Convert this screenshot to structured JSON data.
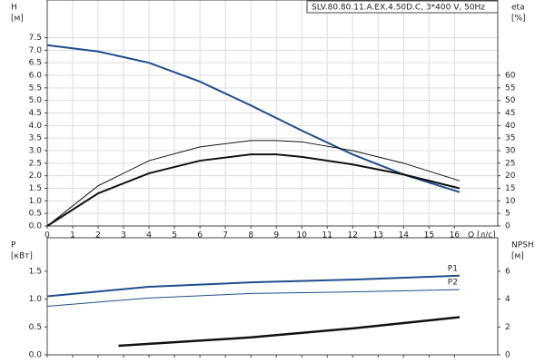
{
  "chart_data": [
    {
      "type": "line",
      "title": "SLV.80.80.11.A.EX.4.50D.C, 3*400 V, 50Hz",
      "ylabel": "H",
      "yunit": "[м]",
      "y2label": "eta",
      "y2unit": "[%]",
      "xlabel": "Q [л/с]",
      "xlim": [
        0,
        17.7
      ],
      "xticks": [
        0,
        1,
        2,
        3,
        4,
        5,
        6,
        7,
        8,
        9,
        10,
        11,
        12,
        13,
        14,
        15,
        16
      ],
      "ylim": [
        0,
        9
      ],
      "yticks": [
        {
          "value": 0,
          "label": "0.0"
        },
        {
          "value": 0.5,
          "label": "0.5"
        },
        {
          "value": 1,
          "label": "1.0"
        },
        {
          "value": 1.5,
          "label": "1.5"
        },
        {
          "value": 2,
          "label": "2.0"
        },
        {
          "value": 2.5,
          "label": "2.5"
        },
        {
          "value": 3,
          "label": "3.0"
        },
        {
          "value": 3.5,
          "label": "3.5"
        },
        {
          "value": 4,
          "label": "4.0"
        },
        {
          "value": 4.5,
          "label": "4.5"
        },
        {
          "value": 5,
          "label": "5.0"
        },
        {
          "value": 5.5,
          "label": "5.5"
        },
        {
          "value": 6,
          "label": "6.0"
        },
        {
          "value": 6.5,
          "label": "6.5"
        },
        {
          "value": 7,
          "label": "7.0"
        },
        {
          "value": 7.5,
          "label": "7.5"
        }
      ],
      "y2lim": [
        0,
        90
      ],
      "y2ticks": [
        0,
        5,
        10,
        15,
        20,
        25,
        30,
        35,
        40,
        45,
        50,
        55,
        60
      ],
      "grid": true,
      "series": [
        {
          "color": "#1f4e8c",
          "width": 2,
          "x": [
            0,
            2,
            4,
            6,
            8,
            10,
            12,
            14,
            16.2
          ],
          "values": [
            7.2,
            6.95,
            6.5,
            5.75,
            4.8,
            3.8,
            2.85,
            2.05,
            1.35
          ]
        },
        {
          "color": "#111111",
          "width": 1,
          "axis": "y2",
          "x": [
            0,
            2,
            4,
            6,
            8,
            9,
            10,
            12,
            14,
            16.2
          ],
          "values": [
            0,
            16,
            26,
            31.5,
            34,
            34,
            33.5,
            30,
            25,
            18
          ]
        },
        {
          "color": "#111111",
          "width": 2,
          "axis": "y2",
          "x": [
            0,
            2,
            4,
            6,
            8,
            9,
            10,
            12,
            14,
            16.2
          ],
          "values": [
            0,
            13,
            21,
            26,
            28.5,
            28.5,
            27.5,
            24.5,
            20.5,
            15
          ]
        }
      ]
    },
    {
      "type": "line",
      "ylabel": "P",
      "yunit": "[кВт]",
      "y2label": "NPSH",
      "y2unit": "[м]",
      "xlim": [
        0,
        17.7
      ],
      "xticks": [
        0,
        1,
        2,
        3,
        4,
        5,
        6,
        7,
        8,
        9,
        10,
        11,
        12,
        13,
        14,
        15,
        16
      ],
      "ylim": [
        0,
        2.1
      ],
      "yticks": [
        {
          "value": 0,
          "label": "0.0"
        },
        {
          "value": 0.5,
          "label": "0.5"
        },
        {
          "value": 1,
          "label": "1.0"
        },
        {
          "value": 1.5,
          "label": "1.5"
        }
      ],
      "y2lim": [
        0,
        8.4
      ],
      "y2ticks": [
        0,
        2,
        4,
        6
      ],
      "grid": false,
      "series": [
        {
          "name": "P1",
          "color": "#1f4e8c",
          "width": 2,
          "x": [
            0,
            4,
            8,
            12,
            16.2
          ],
          "values": [
            1.05,
            1.22,
            1.3,
            1.35,
            1.42
          ]
        },
        {
          "name": "P2",
          "color": "#1f4e8c",
          "width": 1,
          "x": [
            0,
            4,
            8,
            12,
            16.2
          ],
          "values": [
            0.87,
            1.02,
            1.1,
            1.13,
            1.17
          ]
        },
        {
          "color": "#111111",
          "width": 2.5,
          "axis": "y2",
          "x": [
            2.8,
            8,
            12,
            16.2
          ],
          "values": [
            0.65,
            1.25,
            1.9,
            2.7
          ]
        }
      ]
    }
  ]
}
